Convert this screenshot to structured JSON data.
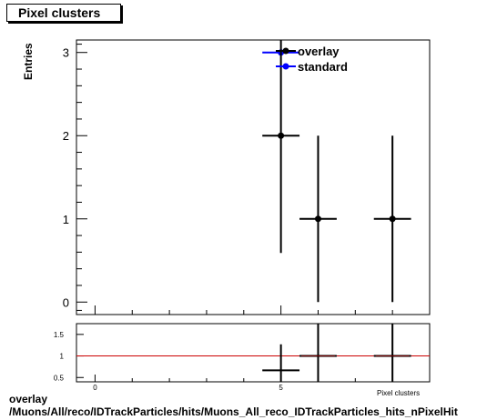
{
  "title": "Pixel clusters",
  "footer": {
    "line1": "overlay",
    "line2": "/Muons/All/reco/IDTrackParticles/hits/Muons_All_reco_IDTrackParticles_hits_nPixelHit"
  },
  "legend": [
    {
      "label": "overlay",
      "color": "#000000"
    },
    {
      "label": "standard",
      "color": "#0000ff"
    }
  ],
  "chart_data": [
    {
      "type": "scatter",
      "title": "Pixel clusters",
      "ylabel": "Entries",
      "xlabel": "",
      "xlim": [
        -0.5,
        9
      ],
      "ylim": [
        -0.15,
        3.15
      ],
      "yticks": [
        "0",
        "1",
        "2",
        "3"
      ],
      "series": [
        {
          "name": "overlay",
          "color": "#000000",
          "points": [
            {
              "x": 5,
              "y": 2,
              "xerr": 0.5,
              "ylow": 0.59,
              "yhigh": 3.15
            },
            {
              "x": 6,
              "y": 1,
              "xerr": 0.5,
              "ylow": 0,
              "yhigh": 2
            },
            {
              "x": 8,
              "y": 1,
              "xerr": 0.5,
              "ylow": 0,
              "yhigh": 2
            }
          ]
        },
        {
          "name": "standard",
          "color": "#0000ff",
          "points": [
            {
              "x": 5,
              "y": 3,
              "xerr": 0.5,
              "ylow": 3,
              "yhigh": 3
            }
          ]
        }
      ]
    },
    {
      "type": "scatter",
      "xlim": [
        -0.5,
        9
      ],
      "ylim": [
        0.4,
        1.75
      ],
      "yticks": [
        "0.5",
        "1",
        "1.5"
      ],
      "xticks": [
        "0",
        "5"
      ],
      "xlabel_fragment": "Pixel clusters",
      "reference_line": {
        "y": 1,
        "color": "#cc0000"
      },
      "series": [
        {
          "name": "ratio",
          "color": "#000000",
          "points": [
            {
              "x": 5,
              "y": 0.667,
              "xerr": 0.5,
              "ylow": 0.4,
              "yhigh": 1.27
            },
            {
              "x": 6,
              "y": 1.0,
              "xerr": 0.5,
              "ylow": 0.4,
              "yhigh": 1.75
            },
            {
              "x": 8,
              "y": 1.0,
              "xerr": 0.5,
              "ylow": 0.4,
              "yhigh": 1.75
            }
          ]
        }
      ]
    }
  ]
}
